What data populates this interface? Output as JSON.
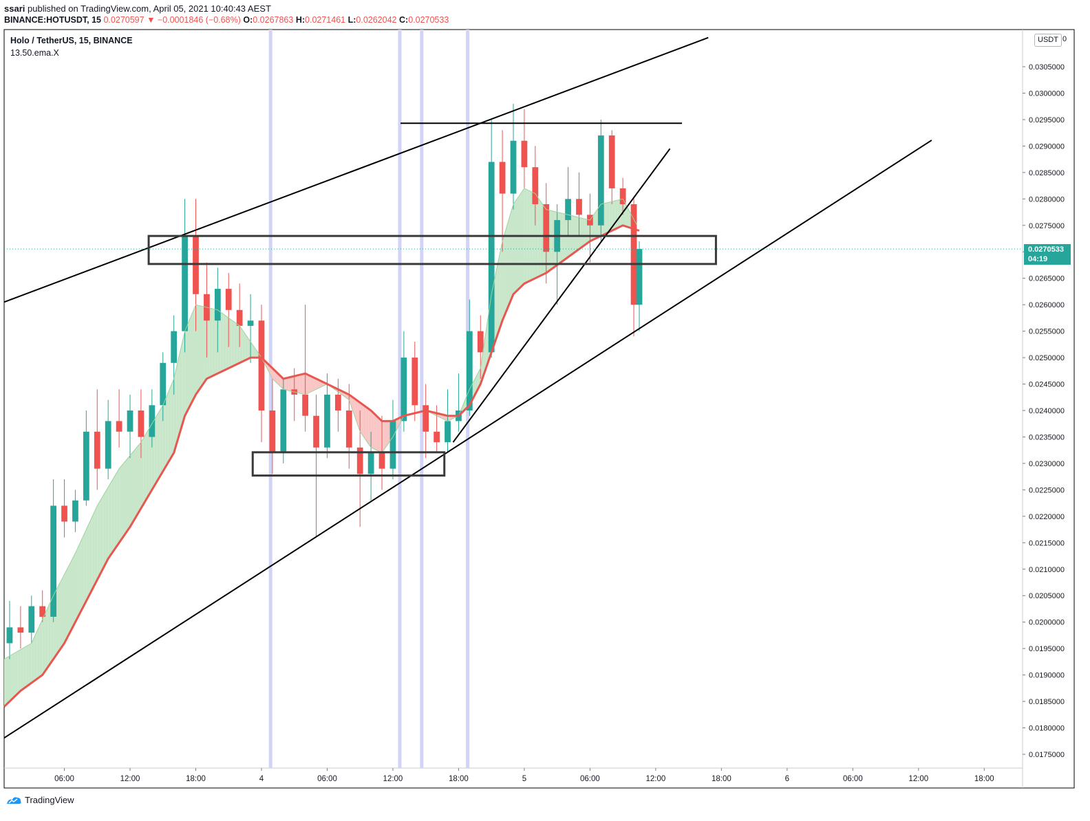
{
  "header": {
    "user": "ssari",
    "published": "published on TradingView.com, April 05, 2021 10:40:43 AEST"
  },
  "ohlc_bar": {
    "symbol_label": "BINANCE:HOTUSDT, 15",
    "last": "0.0270597",
    "change": "−0.0001846 (−0.68%)",
    "o_label": "O:",
    "o": "0.0267863",
    "h_label": "H:",
    "h": "0.0271461",
    "l_label": "L:",
    "l": "0.0262042",
    "c_label": "C:",
    "c": "0.0270533"
  },
  "legend": {
    "title": "Holo / TetherUS, 15, BINANCE",
    "indicator": "13.50.ema.X"
  },
  "price_axis": {
    "currency": "USDT",
    "top_partial": "0",
    "current_price": "0.0270533",
    "countdown": "04:19"
  },
  "footer": {
    "brand": "TradingView"
  },
  "colors": {
    "up": "#26a69a",
    "down": "#ef5350",
    "ema_slow": "#e8574f",
    "ribbon_up": "#c8e6c9",
    "ribbon_down": "#f8c6c4",
    "highlight": "#d1d4f7"
  },
  "chart_data": {
    "type": "candlestick",
    "symbol": "Holo / TetherUS",
    "timeframe": "15",
    "exchange": "BINANCE",
    "y_ticks": [
      "0.0305000",
      "0.0300000",
      "0.0295000",
      "0.0290000",
      "0.0285000",
      "0.0280000",
      "0.0275000",
      "0.0270000",
      "0.0265000",
      "0.0260000",
      "0.0255000",
      "0.0250000",
      "0.0245000",
      "0.0240000",
      "0.0235000",
      "0.0230000",
      "0.0225000",
      "0.0220000",
      "0.0215000",
      "0.0210000",
      "0.0205000",
      "0.0200000",
      "0.0195000",
      "0.0190000",
      "0.0185000",
      "0.0180000",
      "0.0175000"
    ],
    "y_tick_values": [
      0.0305,
      0.03,
      0.0295,
      0.029,
      0.0285,
      0.028,
      0.0275,
      0.027,
      0.0265,
      0.026,
      0.0255,
      0.025,
      0.0245,
      0.024,
      0.0235,
      0.023,
      0.0225,
      0.022,
      0.0215,
      0.021,
      0.0205,
      0.02,
      0.0195,
      0.019,
      0.0185,
      0.018,
      0.0175
    ],
    "x_ticks": [
      "06:00",
      "12:00",
      "18:00",
      "4",
      "06:00",
      "12:00",
      "18:00",
      "5",
      "06:00",
      "12:00",
      "18:00",
      "6",
      "06:00",
      "12:00",
      "18:00"
    ],
    "x_tick_hours": [
      6,
      12,
      18,
      24,
      30,
      36,
      42,
      48,
      54,
      60,
      66,
      72,
      78,
      84,
      90
    ],
    "x_range_hours": [
      0.5,
      93.5
    ],
    "current_price": 0.0270533,
    "candles_hourly": [
      {
        "t": 1,
        "o": 0.0196,
        "h": 0.0204,
        "l": 0.0193,
        "c": 0.0199
      },
      {
        "t": 2,
        "o": 0.0199,
        "h": 0.0203,
        "l": 0.0195,
        "c": 0.0198
      },
      {
        "t": 3,
        "o": 0.0198,
        "h": 0.0205,
        "l": 0.0196,
        "c": 0.0203
      },
      {
        "t": 4,
        "o": 0.0203,
        "h": 0.0206,
        "l": 0.02,
        "c": 0.0201
      },
      {
        "t": 5,
        "o": 0.0201,
        "h": 0.0227,
        "l": 0.02,
        "c": 0.0222
      },
      {
        "t": 6,
        "o": 0.0222,
        "h": 0.0227,
        "l": 0.0216,
        "c": 0.0219
      },
      {
        "t": 7,
        "o": 0.0219,
        "h": 0.0225,
        "l": 0.0217,
        "c": 0.0223
      },
      {
        "t": 8,
        "o": 0.0223,
        "h": 0.024,
        "l": 0.0222,
        "c": 0.0236
      },
      {
        "t": 9,
        "o": 0.0236,
        "h": 0.0244,
        "l": 0.0225,
        "c": 0.0229
      },
      {
        "t": 10,
        "o": 0.0229,
        "h": 0.0242,
        "l": 0.0227,
        "c": 0.0238
      },
      {
        "t": 11,
        "o": 0.0238,
        "h": 0.0244,
        "l": 0.0233,
        "c": 0.0236
      },
      {
        "t": 12,
        "o": 0.0236,
        "h": 0.0243,
        "l": 0.0231,
        "c": 0.024
      },
      {
        "t": 13,
        "o": 0.024,
        "h": 0.0244,
        "l": 0.0231,
        "c": 0.0235
      },
      {
        "t": 14,
        "o": 0.0235,
        "h": 0.0244,
        "l": 0.0233,
        "c": 0.0241
      },
      {
        "t": 15,
        "o": 0.0241,
        "h": 0.0251,
        "l": 0.0238,
        "c": 0.0249
      },
      {
        "t": 16,
        "o": 0.0249,
        "h": 0.0258,
        "l": 0.0243,
        "c": 0.0255
      },
      {
        "t": 17,
        "o": 0.0255,
        "h": 0.028,
        "l": 0.0251,
        "c": 0.0273
      },
      {
        "t": 18,
        "o": 0.0273,
        "h": 0.028,
        "l": 0.0255,
        "c": 0.0262
      },
      {
        "t": 19,
        "o": 0.0262,
        "h": 0.0268,
        "l": 0.025,
        "c": 0.0257
      },
      {
        "t": 20,
        "o": 0.0257,
        "h": 0.0267,
        "l": 0.0251,
        "c": 0.0263
      },
      {
        "t": 21,
        "o": 0.0263,
        "h": 0.0266,
        "l": 0.0252,
        "c": 0.0259
      },
      {
        "t": 22,
        "o": 0.0259,
        "h": 0.0264,
        "l": 0.0252,
        "c": 0.0256
      },
      {
        "t": 23,
        "o": 0.0256,
        "h": 0.0262,
        "l": 0.0249,
        "c": 0.0257
      },
      {
        "t": 24,
        "o": 0.0257,
        "h": 0.026,
        "l": 0.0234,
        "c": 0.024
      },
      {
        "t": 25,
        "o": 0.024,
        "h": 0.0246,
        "l": 0.0228,
        "c": 0.0232
      },
      {
        "t": 26,
        "o": 0.0232,
        "h": 0.0246,
        "l": 0.023,
        "c": 0.0244
      },
      {
        "t": 27,
        "o": 0.0244,
        "h": 0.0248,
        "l": 0.0238,
        "c": 0.0243
      },
      {
        "t": 28,
        "o": 0.0243,
        "h": 0.026,
        "l": 0.0236,
        "c": 0.0239
      },
      {
        "t": 29,
        "o": 0.0239,
        "h": 0.0243,
        "l": 0.0216,
        "c": 0.0233
      },
      {
        "t": 30,
        "o": 0.0233,
        "h": 0.0247,
        "l": 0.0231,
        "c": 0.0243
      },
      {
        "t": 31,
        "o": 0.0243,
        "h": 0.0246,
        "l": 0.0236,
        "c": 0.024
      },
      {
        "t": 32,
        "o": 0.024,
        "h": 0.0245,
        "l": 0.0229,
        "c": 0.0233
      },
      {
        "t": 33,
        "o": 0.0233,
        "h": 0.024,
        "l": 0.0218,
        "c": 0.0228
      },
      {
        "t": 34,
        "o": 0.0228,
        "h": 0.0236,
        "l": 0.0223,
        "c": 0.0232
      },
      {
        "t": 35,
        "o": 0.0232,
        "h": 0.0239,
        "l": 0.0225,
        "c": 0.0229
      },
      {
        "t": 36,
        "o": 0.0229,
        "h": 0.0242,
        "l": 0.0227,
        "c": 0.0238
      },
      {
        "t": 37,
        "o": 0.0238,
        "h": 0.0255,
        "l": 0.0236,
        "c": 0.025
      },
      {
        "t": 38,
        "o": 0.025,
        "h": 0.0253,
        "l": 0.0238,
        "c": 0.0241
      },
      {
        "t": 39,
        "o": 0.0241,
        "h": 0.0245,
        "l": 0.0231,
        "c": 0.0236
      },
      {
        "t": 40,
        "o": 0.0236,
        "h": 0.0241,
        "l": 0.0232,
        "c": 0.0234
      },
      {
        "t": 41,
        "o": 0.0234,
        "h": 0.0244,
        "l": 0.0232,
        "c": 0.0238
      },
      {
        "t": 42,
        "o": 0.0238,
        "h": 0.0247,
        "l": 0.0236,
        "c": 0.024
      },
      {
        "t": 43,
        "o": 0.024,
        "h": 0.0261,
        "l": 0.0239,
        "c": 0.0255
      },
      {
        "t": 44,
        "o": 0.0255,
        "h": 0.0258,
        "l": 0.0246,
        "c": 0.0251
      },
      {
        "t": 45,
        "o": 0.0251,
        "h": 0.0295,
        "l": 0.025,
        "c": 0.0287
      },
      {
        "t": 46,
        "o": 0.0287,
        "h": 0.0293,
        "l": 0.027,
        "c": 0.0281
      },
      {
        "t": 47,
        "o": 0.0281,
        "h": 0.0298,
        "l": 0.0278,
        "c": 0.0291
      },
      {
        "t": 48,
        "o": 0.0291,
        "h": 0.0297,
        "l": 0.0282,
        "c": 0.0286
      },
      {
        "t": 49,
        "o": 0.0286,
        "h": 0.029,
        "l": 0.0275,
        "c": 0.0279
      },
      {
        "t": 50,
        "o": 0.0279,
        "h": 0.0283,
        "l": 0.0264,
        "c": 0.027
      },
      {
        "t": 51,
        "o": 0.027,
        "h": 0.0279,
        "l": 0.026,
        "c": 0.0276
      },
      {
        "t": 52,
        "o": 0.0276,
        "h": 0.0286,
        "l": 0.0273,
        "c": 0.028
      },
      {
        "t": 53,
        "o": 0.028,
        "h": 0.0285,
        "l": 0.0273,
        "c": 0.0277
      },
      {
        "t": 54,
        "o": 0.0277,
        "h": 0.0281,
        "l": 0.0268,
        "c": 0.0275
      },
      {
        "t": 55,
        "o": 0.0275,
        "h": 0.0295,
        "l": 0.0272,
        "c": 0.0292
      },
      {
        "t": 56,
        "o": 0.0292,
        "h": 0.0293,
        "l": 0.0279,
        "c": 0.0282
      },
      {
        "t": 57,
        "o": 0.0282,
        "h": 0.0284,
        "l": 0.0277,
        "c": 0.0279
      },
      {
        "t": 58,
        "o": 0.0279,
        "h": 0.028,
        "l": 0.0254,
        "c": 0.026
      },
      {
        "t": 58.5,
        "o": 0.026,
        "h": 0.0272,
        "l": 0.0255,
        "c": 0.0270533
      }
    ],
    "ema_fast": [
      [
        0.5,
        0.0193
      ],
      [
        3,
        0.0196
      ],
      [
        5,
        0.0205
      ],
      [
        7,
        0.0213
      ],
      [
        9,
        0.0222
      ],
      [
        11,
        0.0229
      ],
      [
        13,
        0.0234
      ],
      [
        15,
        0.0241
      ],
      [
        16,
        0.0246
      ],
      [
        17,
        0.0255
      ],
      [
        18,
        0.026
      ],
      [
        20,
        0.0259
      ],
      [
        22,
        0.0256
      ],
      [
        24,
        0.025
      ],
      [
        25,
        0.0246
      ],
      [
        26,
        0.0244
      ],
      [
        28,
        0.0243
      ],
      [
        30,
        0.0245
      ],
      [
        32,
        0.0242
      ],
      [
        33,
        0.0236
      ],
      [
        34,
        0.0233
      ],
      [
        35,
        0.0232
      ],
      [
        36,
        0.0235
      ],
      [
        37,
        0.0239
      ],
      [
        39,
        0.024
      ],
      [
        41,
        0.0238
      ],
      [
        42,
        0.0239
      ],
      [
        43,
        0.0244
      ],
      [
        44,
        0.0248
      ],
      [
        45,
        0.0262
      ],
      [
        46,
        0.0272
      ],
      [
        47,
        0.0279
      ],
      [
        48,
        0.0282
      ],
      [
        49,
        0.0281
      ],
      [
        50,
        0.0278
      ],
      [
        52,
        0.0277
      ],
      [
        54,
        0.0276
      ],
      [
        55,
        0.0279
      ],
      [
        57,
        0.028
      ],
      [
        58.3,
        0.0275
      ]
    ],
    "ema_slow": [
      [
        0.5,
        0.0184
      ],
      [
        2,
        0.0187
      ],
      [
        4,
        0.019
      ],
      [
        6,
        0.0196
      ],
      [
        8,
        0.0204
      ],
      [
        10,
        0.0212
      ],
      [
        12,
        0.0218
      ],
      [
        14,
        0.0225
      ],
      [
        16,
        0.0232
      ],
      [
        17,
        0.0239
      ],
      [
        18,
        0.0243
      ],
      [
        19,
        0.0246
      ],
      [
        21,
        0.0248
      ],
      [
        23,
        0.025
      ],
      [
        24,
        0.025
      ],
      [
        25,
        0.0248
      ],
      [
        26,
        0.0246
      ],
      [
        28,
        0.0247
      ],
      [
        30,
        0.0245
      ],
      [
        32,
        0.0243
      ],
      [
        34,
        0.024
      ],
      [
        35,
        0.0238
      ],
      [
        36,
        0.0238
      ],
      [
        37,
        0.0239
      ],
      [
        39,
        0.024
      ],
      [
        41,
        0.0239
      ],
      [
        42,
        0.0239
      ],
      [
        43,
        0.0241
      ],
      [
        44,
        0.0245
      ],
      [
        45,
        0.0251
      ],
      [
        46,
        0.0257
      ],
      [
        47,
        0.0262
      ],
      [
        48,
        0.0264
      ],
      [
        49,
        0.0265
      ],
      [
        50,
        0.0266
      ],
      [
        52,
        0.0269
      ],
      [
        54,
        0.0272
      ],
      [
        55,
        0.0273
      ],
      [
        56,
        0.0274
      ],
      [
        57,
        0.0275
      ],
      [
        58.5,
        0.0274
      ]
    ],
    "vertical_highlights_hours": [
      24.8,
      36.6,
      38.6,
      42.8
    ],
    "drawings": {
      "trendlines": [
        {
          "from": [
            0.5,
            0.02605
          ],
          "to": [
            64.8,
            0.03105
          ]
        },
        {
          "from": [
            0.5,
            0.01781
          ],
          "to": [
            85.2,
            0.02911
          ]
        },
        {
          "from": [
            41.5,
            0.0234
          ],
          "to": [
            61.3,
            0.02895
          ]
        },
        {
          "from": [
            36.7,
            0.02943
          ],
          "to": [
            62.4,
            0.02943
          ]
        }
      ],
      "boxes": [
        {
          "x": [
            13.7,
            65.5
          ],
          "y": [
            0.02677,
            0.0273
          ]
        },
        {
          "x": [
            23.2,
            40.7
          ],
          "y": [
            0.02277,
            0.02321
          ]
        }
      ]
    }
  }
}
